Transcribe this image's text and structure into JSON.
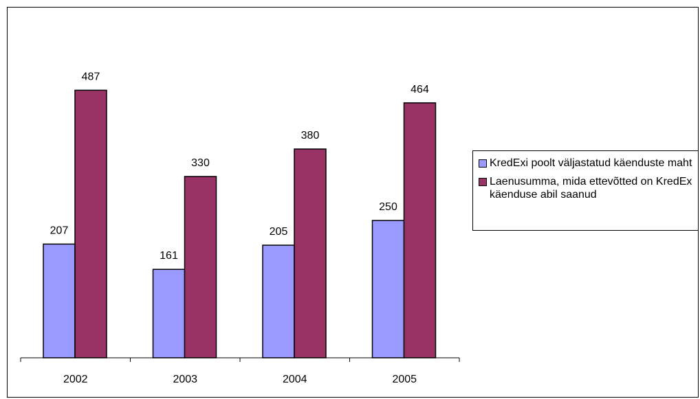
{
  "chart_data": {
    "type": "bar",
    "title": "",
    "xlabel": "",
    "ylabel": "",
    "categories": [
      "2002",
      "2003",
      "2004",
      "2005"
    ],
    "series": [
      {
        "name": "KredExi poolt väljastatud käenduste maht",
        "color": "#9999ff",
        "values": [
          207,
          161,
          205,
          250
        ]
      },
      {
        "name": "Laenusumma, mida ettevõtted on KredEx käenduse abil saanud",
        "color": "#993366",
        "values": [
          487,
          330,
          380,
          464
        ]
      }
    ],
    "ylim": [
      0,
      600
    ],
    "grid": false,
    "legend_position": "right",
    "data_labels": true
  }
}
